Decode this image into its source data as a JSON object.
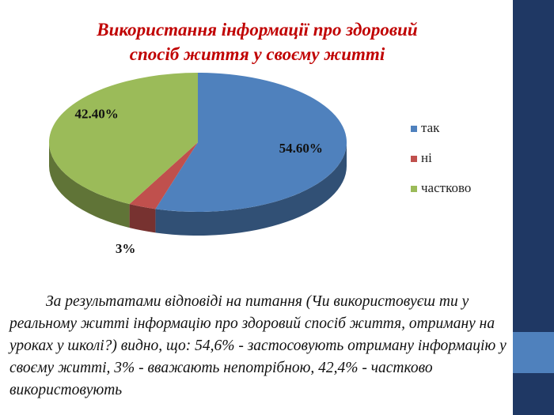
{
  "chart_data": {
    "type": "pie",
    "title": "Використання інформації про здоровий спосіб життя у своєму житті",
    "categories": [
      "так",
      "ні",
      "частково"
    ],
    "values": [
      54.6,
      3,
      42.4
    ],
    "value_labels": [
      "54.60%",
      "3%",
      "42.40%"
    ],
    "colors": [
      "#4f81bd",
      "#c0504d",
      "#9bbb59"
    ],
    "legend": "right"
  },
  "body_text": "За результатами відповіді на питання (Чи використовуєш ти у реальному житті інформацію про здоровий спосіб життя, отриману на уроках у школі?) видно, що: 54,6% - застосовують отриману інформацію у своєму житті, 3% - вважають непотрібною, 42,4% - частково використовують"
}
